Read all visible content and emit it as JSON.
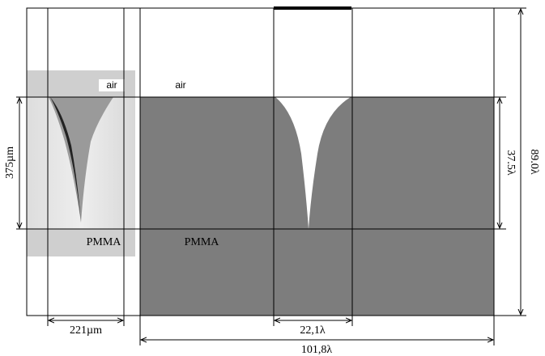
{
  "regions": {
    "left_air": "air",
    "right_air": "air",
    "left_material": "PMMA",
    "right_material": "PMMA"
  },
  "dimensions": {
    "measured_depth": "375µm",
    "measured_width": "221µm",
    "model_depth": "37.5λ",
    "model_height": "89.0λ",
    "model_groove_width": "22,1λ",
    "model_width": "101,8λ"
  }
}
